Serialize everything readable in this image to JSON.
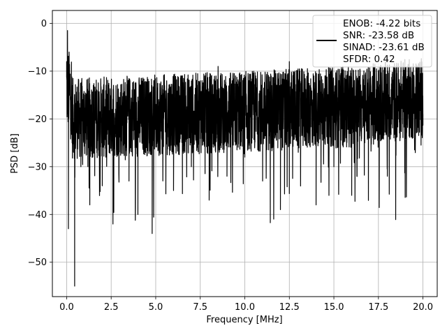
{
  "chart_data": {
    "type": "line",
    "title": "",
    "xlabel": "Frequency [MHz]",
    "ylabel": "PSD [dB]",
    "xlim": [
      -0.8,
      20.8
    ],
    "ylim": [
      -57.2,
      2.7
    ],
    "xticks": [
      0.0,
      2.5,
      5.0,
      7.5,
      10.0,
      12.5,
      15.0,
      17.5,
      20.0
    ],
    "xtick_labels": [
      "0.0",
      "2.5",
      "5.0",
      "7.5",
      "10.0",
      "12.5",
      "15.0",
      "17.5",
      "20.0"
    ],
    "yticks": [
      0,
      -10,
      -20,
      -30,
      -40,
      -50
    ],
    "ytick_labels": [
      "0",
      "−10",
      "−20",
      "−30",
      "−40",
      "−50"
    ],
    "grid": true,
    "legend_position": "upper-right",
    "legend_lines": [
      "ENOB: -4.22 bits",
      "SNR: -23.58 dB",
      "SINAD: -23.61 dB",
      "SFDR: 0.42"
    ],
    "series": [
      {
        "color": "#000000",
        "description": "noise-like power spectral density from 0 to 20 MHz, roughly -30 to -10 dB band with deep dips",
        "x": [
          0.0,
          0.05,
          0.1,
          0.2,
          0.35,
          0.45,
          0.6,
          0.8,
          1.0,
          1.3,
          1.6,
          2.0,
          2.2,
          2.6,
          3.0,
          3.5,
          4.0,
          4.5,
          4.8,
          5.5,
          6.0,
          6.5,
          7.0,
          7.5,
          8.0,
          8.5,
          9.0,
          9.5,
          10.0,
          10.5,
          11.0,
          11.5,
          12.0,
          12.5,
          13.0,
          13.5,
          14.0,
          14.5,
          15.0,
          15.5,
          16.0,
          16.5,
          17.0,
          17.5,
          18.0,
          18.5,
          19.0,
          19.5,
          20.0
        ],
        "y": [
          -8,
          -1.5,
          -43,
          -12,
          -25,
          -55,
          -20,
          -30,
          -15,
          -38,
          -18,
          -34,
          -28,
          -42,
          -16,
          -33,
          -40,
          -22,
          -44,
          -13,
          -35,
          -11,
          -30,
          -12,
          -37,
          -9,
          -32,
          -14,
          -28,
          -10,
          -33,
          -13,
          -39,
          -8,
          -27,
          -12,
          -38,
          -11,
          -30,
          -9,
          -36,
          -14,
          -24,
          -10,
          -32,
          -12,
          -31,
          -11,
          -19
        ]
      }
    ]
  }
}
